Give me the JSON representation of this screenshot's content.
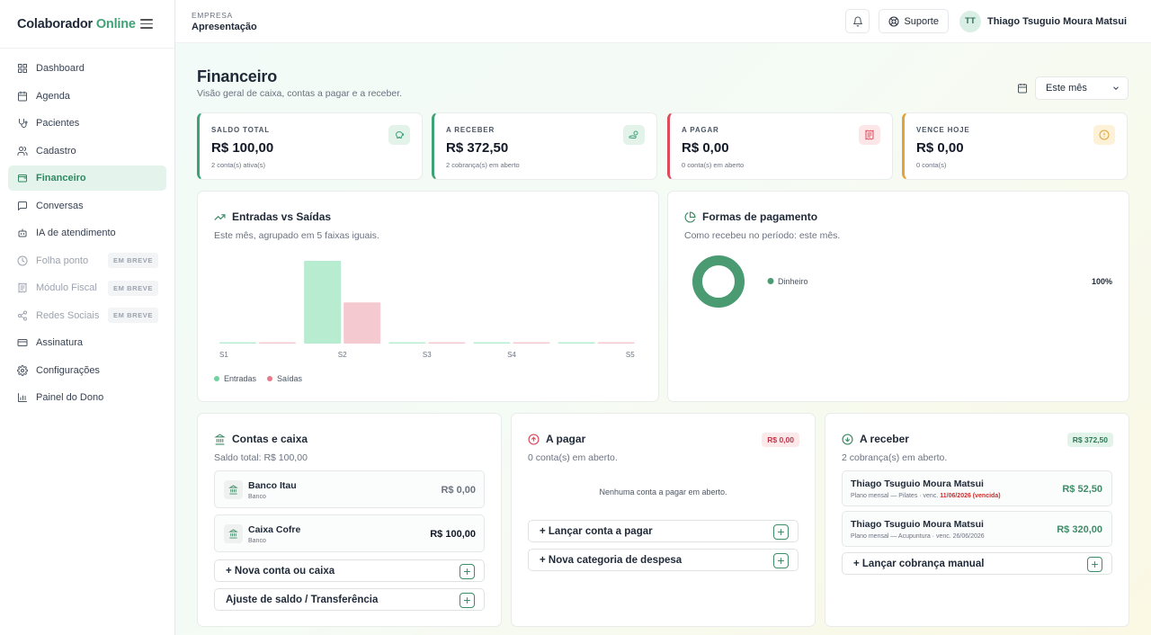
{
  "sidebar": {
    "brand_part1": "Colaborador",
    "brand_part2": "Online",
    "items": [
      {
        "label": "Dashboard",
        "icon": "grid-icon",
        "state": "normal"
      },
      {
        "label": "Agenda",
        "icon": "calendar-icon",
        "state": "normal"
      },
      {
        "label": "Pacientes",
        "icon": "stethoscope-icon",
        "state": "normal"
      },
      {
        "label": "Cadastro",
        "icon": "users-icon",
        "state": "normal"
      },
      {
        "label": "Financeiro",
        "icon": "wallet-icon",
        "state": "active"
      },
      {
        "label": "Conversas",
        "icon": "chat-icon",
        "state": "normal"
      },
      {
        "label": "IA de atendimento",
        "icon": "robot-icon",
        "state": "normal"
      },
      {
        "label": "Folha ponto",
        "icon": "clock-icon",
        "state": "disabled",
        "badge": "EM BREVE"
      },
      {
        "label": "Módulo Fiscal",
        "icon": "receipt-icon",
        "state": "disabled",
        "badge": "EM BREVE"
      },
      {
        "label": "Redes Sociais",
        "icon": "share-icon",
        "state": "disabled",
        "badge": "EM BREVE"
      },
      {
        "label": "Assinatura",
        "icon": "credit-card-icon",
        "state": "normal"
      },
      {
        "label": "Configurações",
        "icon": "gear-icon",
        "state": "normal"
      },
      {
        "label": "Painel do Dono",
        "icon": "bar-chart-icon",
        "state": "normal"
      }
    ]
  },
  "topbar": {
    "company_label": "EMPRESA",
    "company_name": "Apresentação",
    "support_label": "Suporte",
    "user_initials": "TT",
    "user_name": "Thiago Tsuguio Moura Matsui"
  },
  "page": {
    "title": "Financeiro",
    "subtitle": "Visão geral de caixa, contas a pagar e a receber.",
    "period_value": "Este mês"
  },
  "kpis": [
    {
      "label": "SALDO TOTAL",
      "value": "R$ 100,00",
      "sub": "2 conta(s) ativa(s)",
      "icon": "piggy-bank-icon",
      "accent": "#3fa277"
    },
    {
      "label": "A RECEBER",
      "value": "R$ 372,50",
      "sub": "2 cobrança(s) em aberto",
      "icon": "hand-coins-icon",
      "accent": "#3fa277"
    },
    {
      "label": "A PAGAR",
      "value": "R$ 0,00",
      "sub": "0 conta(s) em aberto",
      "icon": "receipt-icon",
      "accent": "#dc4c5c"
    },
    {
      "label": "VENCE HOJE",
      "value": "R$ 0,00",
      "sub": "0 conta(s)",
      "icon": "alert-circle-icon",
      "accent": "#e0a43a"
    }
  ],
  "flow_chart": {
    "title": "Entradas vs Saídas",
    "subtitle": "Este mês, agrupado em 5 faixas iguais.",
    "legend_in": "Entradas",
    "legend_out": "Saídas",
    "colors": {
      "in": "#b7ecd0",
      "out": "#f4c9d0"
    }
  },
  "payment_chart": {
    "title": "Formas de pagamento",
    "subtitle": "Como recebeu no período: este mês.",
    "color": "#4a9a72"
  },
  "chart_data": [
    {
      "type": "bar",
      "categories": [
        "S1",
        "S2",
        "S3",
        "S4",
        "S5"
      ],
      "series": [
        {
          "name": "Entradas",
          "values": [
            0,
            372.5,
            0,
            0,
            0
          ]
        },
        {
          "name": "Saídas",
          "values": [
            0,
            185,
            0,
            0,
            0
          ]
        }
      ],
      "xlabel": "",
      "ylabel": "",
      "legend": "bottom-left"
    },
    {
      "type": "pie",
      "labels": [
        "Dinheiro"
      ],
      "values": [
        100
      ],
      "value_labels": [
        "100%"
      ]
    }
  ],
  "accounts": {
    "title": "Contas e caixa",
    "subtitle": "Saldo total: R$ 100,00",
    "items": [
      {
        "name": "Banco Itau",
        "type": "Banco",
        "value": "R$ 0,00"
      },
      {
        "name": "Caixa Cofre",
        "type": "Banco",
        "value": "R$ 100,00"
      }
    ],
    "btn_new": "+ Nova conta ou caixa",
    "btn_adjust": "Ajuste de saldo / Transferência"
  },
  "payables": {
    "title": "A pagar",
    "badge": "R$ 0,00",
    "subtitle": "0 conta(s) em aberto.",
    "empty": "Nenhuma conta a pagar em aberto.",
    "btn_new": "+ Lançar conta a pagar",
    "btn_category": "+ Nova categoria de despesa"
  },
  "receivables": {
    "title": "A receber",
    "badge": "R$ 372,50",
    "subtitle": "2 cobrança(s) em aberto.",
    "items": [
      {
        "name": "Thiago Tsuguio Moura Matsui",
        "desc": "Plano mensal — Pilates · venc.",
        "due": "11/06/2026 (vencida)",
        "value": "R$ 52,50"
      },
      {
        "name": "Thiago Tsuguio Moura Matsui",
        "desc": "Plano mensal — Acupuntura · venc. 26/06/2026",
        "due": "",
        "value": "R$ 320,00"
      }
    ],
    "btn_new": "+ Lançar cobrança manual"
  }
}
